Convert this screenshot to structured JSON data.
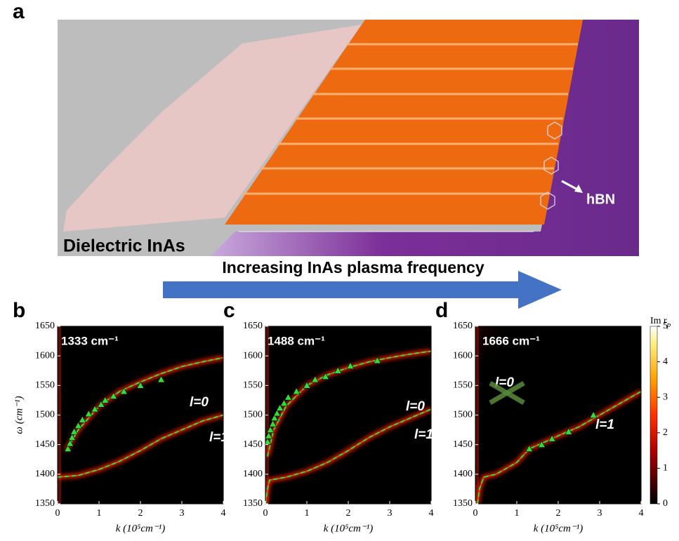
{
  "panel_labels": [
    "a",
    "b",
    "c",
    "d"
  ],
  "illustration": {
    "left_label": "Dielectric InAs",
    "right_label": "hBN",
    "arrow_label": "Increasing InAs plasma frequency"
  },
  "colorbar": {
    "label": "Im r",
    "label_sub": "p",
    "lim": [
      0,
      5
    ],
    "ticks": [
      0,
      1,
      2,
      3,
      4,
      5
    ]
  },
  "chart_data": [
    {
      "type": "dispersion",
      "ylabel": "ω (cm⁻¹)",
      "xlabel": "k (10⁵cm⁻¹)",
      "annotations": [
        "1333 cm⁻¹",
        "l=0",
        "l=1"
      ],
      "xlim": [
        0,
        4
      ],
      "ylim": [
        1350,
        1650
      ],
      "xticks": [
        0,
        1,
        2,
        3,
        4
      ],
      "yticks": [
        1350,
        1400,
        1450,
        1500,
        1550,
        1600,
        1650
      ],
      "series": [
        {
          "style": "dashed",
          "color": "#33dd33",
          "x": [
            0.2,
            0.5,
            1,
            1.5,
            2,
            2.5,
            3,
            3.5,
            4
          ],
          "values": [
            1440,
            1475,
            1515,
            1540,
            1556,
            1570,
            1582,
            1590,
            1597
          ]
        },
        {
          "style": "dashed",
          "color": "#33dd33",
          "x": [
            0,
            0.5,
            1,
            1.5,
            2,
            2.5,
            3,
            3.5,
            4
          ],
          "values": [
            1395,
            1398,
            1408,
            1422,
            1440,
            1460,
            1475,
            1490,
            1500
          ]
        },
        {
          "style": "markers",
          "color": "#33dd33",
          "x": [
            0.25,
            0.3,
            0.35,
            0.4,
            0.5,
            0.6,
            0.75,
            0.9,
            1.05,
            1.15,
            1.35,
            1.6,
            2.0,
            2.5
          ],
          "values": [
            1443,
            1452,
            1462,
            1472,
            1482,
            1492,
            1502,
            1510,
            1518,
            1525,
            1532,
            1540,
            1550,
            1560
          ]
        }
      ]
    },
    {
      "type": "dispersion",
      "xlabel": "k (10⁵cm⁻¹)",
      "annotations": [
        "1488 cm⁻¹",
        "l=0",
        "l=1"
      ],
      "xlim": [
        0,
        4
      ],
      "ylim": [
        1350,
        1650
      ],
      "xticks": [
        0,
        1,
        2,
        3,
        4
      ],
      "yticks": [
        1350,
        1400,
        1450,
        1500,
        1550,
        1600,
        1650
      ],
      "series": [
        {
          "style": "dashed",
          "color": "#33dd33",
          "x": [
            0.05,
            0.2,
            0.5,
            1,
            1.5,
            2,
            2.5,
            3,
            3.5,
            4
          ],
          "values": [
            1430,
            1475,
            1515,
            1550,
            1568,
            1580,
            1590,
            1597,
            1603,
            1608
          ]
        },
        {
          "style": "dashed",
          "color": "#33dd33",
          "x": [
            0,
            0.05,
            0.1,
            0.5,
            1,
            1.5,
            2,
            2.5,
            3,
            3.5,
            4
          ],
          "values": [
            1350,
            1375,
            1390,
            1395,
            1405,
            1420,
            1440,
            1462,
            1480,
            1495,
            1510
          ]
        },
        {
          "style": "markers",
          "color": "#33dd33",
          "x": [
            0.05,
            0.08,
            0.12,
            0.18,
            0.22,
            0.28,
            0.35,
            0.45,
            0.55,
            0.75,
            1.0,
            1.2,
            1.45,
            1.75,
            2.05,
            2.7
          ],
          "values": [
            1455,
            1465,
            1475,
            1485,
            1495,
            1503,
            1512,
            1520,
            1530,
            1540,
            1550,
            1560,
            1565,
            1575,
            1583,
            1592
          ]
        }
      ]
    },
    {
      "type": "dispersion",
      "xlabel": "k (10⁵cm⁻¹)",
      "annotations": [
        "1666 cm⁻¹",
        "l=0",
        "l=1"
      ],
      "xlim": [
        0,
        4
      ],
      "ylim": [
        1350,
        1650
      ],
      "xticks": [
        0,
        1,
        2,
        3,
        4
      ],
      "yticks": [
        1350,
        1400,
        1450,
        1500,
        1550,
        1600,
        1650
      ],
      "series": [
        {
          "style": "dashed",
          "color": "#33dd33",
          "x": [
            0.05,
            0.1,
            0.2,
            0.5,
            1,
            1.3,
            1.6,
            2,
            2.5,
            3,
            3.5,
            4
          ],
          "values": [
            1350,
            1375,
            1395,
            1400,
            1420,
            1443,
            1452,
            1465,
            1480,
            1500,
            1520,
            1540
          ]
        },
        {
          "style": "markers",
          "color": "#33dd33",
          "x": [
            1.3,
            1.6,
            1.85,
            2.25,
            2.85
          ],
          "values": [
            1443,
            1450,
            1460,
            1472,
            1500
          ]
        }
      ]
    }
  ]
}
